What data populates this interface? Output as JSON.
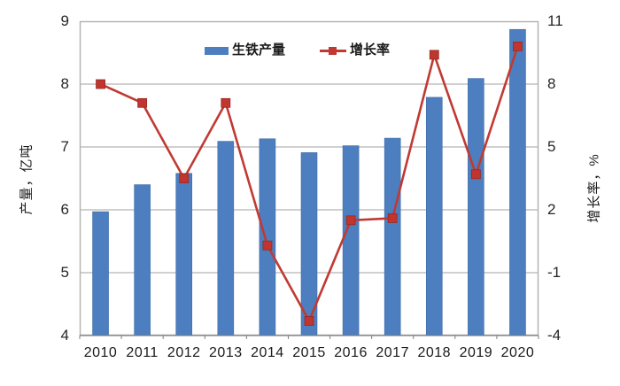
{
  "chart_data": {
    "type": "bar",
    "subtype": "bar+line combo",
    "categories": [
      "2010",
      "2011",
      "2012",
      "2013",
      "2014",
      "2015",
      "2016",
      "2017",
      "2018",
      "2019",
      "2020"
    ],
    "series": [
      {
        "name": "生铁产量",
        "type": "bar",
        "axis": "left",
        "color": "#4d7ebf",
        "values": [
          5.97,
          6.4,
          6.58,
          7.09,
          7.13,
          6.91,
          7.02,
          7.14,
          7.79,
          8.09,
          8.87
        ]
      },
      {
        "name": "增长率",
        "type": "line",
        "axis": "right",
        "color": "#c03a33",
        "values": [
          8.0,
          7.1,
          3.5,
          7.1,
          0.3,
          -3.3,
          1.5,
          1.6,
          9.4,
          3.7,
          9.8
        ]
      }
    ],
    "left_axis": {
      "label": "产量，亿吨",
      "min": 4,
      "max": 9,
      "ticks": [
        9,
        8,
        7,
        6,
        5,
        4
      ]
    },
    "right_axis": {
      "label": "增长率，%",
      "min": -4,
      "max": 11,
      "ticks": [
        11,
        8,
        5,
        2,
        -1,
        -4
      ]
    },
    "legend_position": "top-inside",
    "grid": true,
    "colors": {
      "gridline": "#b5b5b5",
      "plot_border": "#b0b0b0",
      "axis_line": "#7f7f7f",
      "bar_fill": "#4d7ebf",
      "bar_edge": "#3e6ca6",
      "line_stroke": "#c03a33",
      "marker_fill": "#c0352e"
    }
  }
}
